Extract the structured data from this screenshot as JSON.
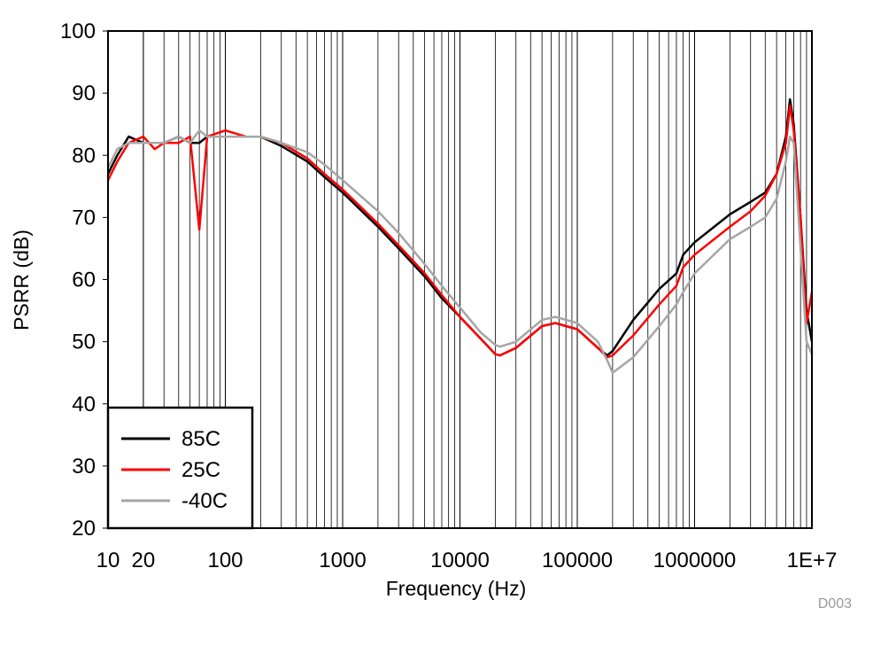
{
  "chart_data": {
    "type": "line",
    "x_label": "Frequency (Hz)",
    "y_label": "PSRR (dB)",
    "annotation": "D003",
    "x_scale": "log",
    "grid": "x",
    "minor_grid": true,
    "legend_position": "lower left",
    "xlim": [
      10,
      10000000
    ],
    "ylim": [
      20,
      100
    ],
    "xticks": [
      10,
      20,
      100,
      1000,
      10000,
      100000,
      1000000,
      {
        "value": 10000000,
        "label": "1E+7"
      }
    ],
    "yticks": [
      20,
      30,
      40,
      50,
      60,
      70,
      80,
      90,
      100
    ],
    "x": [
      10,
      12,
      15,
      20,
      25,
      30,
      40,
      50,
      60,
      70,
      100,
      150,
      200,
      300,
      500,
      700,
      1000,
      2000,
      3000,
      5000,
      7000,
      10000,
      15000,
      20000,
      22000,
      30000,
      50000,
      65000,
      100000,
      150000,
      180000,
      200000,
      300000,
      500000,
      700000,
      800000,
      1000000,
      2000000,
      3000000,
      4000000,
      5000000,
      6000000,
      6500000,
      7000000,
      8000000,
      9000000,
      10000000
    ],
    "series": [
      {
        "name": "85C",
        "color": "#000000",
        "values": [
          77,
          80,
          83,
          82,
          82,
          82,
          83,
          82,
          82,
          83,
          83,
          83,
          83,
          81.5,
          79,
          76.5,
          74,
          68.5,
          65,
          60.5,
          57,
          54,
          50.5,
          48,
          47.8,
          49,
          52.5,
          53,
          52,
          49,
          47.8,
          48.5,
          53.5,
          58.5,
          61,
          64,
          66,
          70.5,
          72.5,
          74,
          77,
          83,
          89,
          85,
          70,
          55,
          50
        ]
      },
      {
        "name": "25C",
        "color": "#ff0000",
        "values": [
          76,
          79,
          82,
          83,
          81,
          82,
          82,
          83,
          68,
          83,
          84,
          83,
          83,
          82,
          79.5,
          77,
          74.5,
          69,
          65.5,
          61,
          57.5,
          54,
          50.5,
          48,
          47.8,
          49,
          52.5,
          53,
          52,
          49,
          47.5,
          47.8,
          51,
          56,
          59,
          62,
          64,
          68.5,
          71,
          73.5,
          77,
          82,
          88,
          84,
          70,
          53,
          58
        ]
      },
      {
        "name": "-40C",
        "color": "#a6a6a6",
        "values": [
          78,
          81,
          82,
          82,
          82,
          82,
          83,
          82,
          84,
          83,
          83,
          83,
          83,
          82,
          80.5,
          78.5,
          76,
          71,
          67.5,
          62.5,
          59,
          55.5,
          51.5,
          49.5,
          49.2,
          50,
          53.5,
          54,
          53,
          50,
          47,
          45,
          47.5,
          52.5,
          56,
          58,
          61,
          66.5,
          68.5,
          70,
          73,
          79,
          83,
          82,
          65,
          50,
          48
        ]
      }
    ]
  }
}
